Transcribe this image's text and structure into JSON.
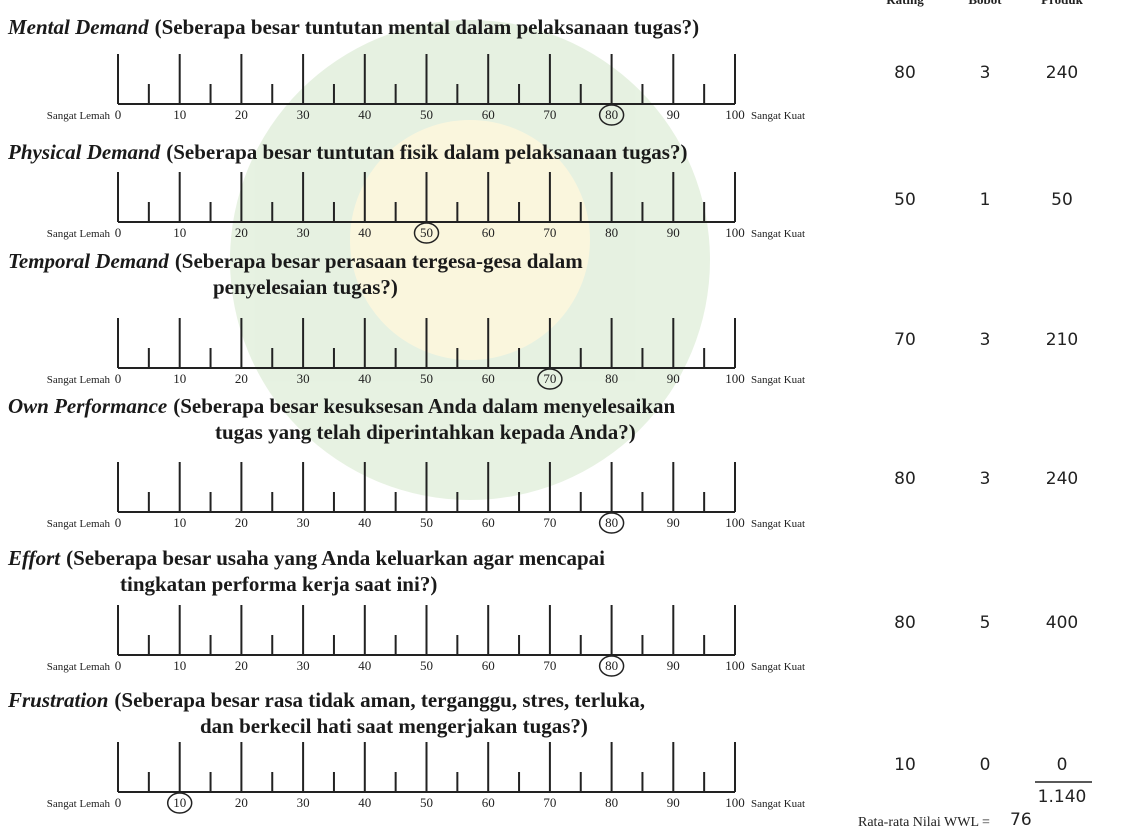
{
  "header": {
    "columns": [
      "Rating",
      "Bobot",
      "Produk"
    ]
  },
  "scale": {
    "left_label": "Sangat Lemah",
    "right_label": "Sangat Kuat",
    "ticks": [
      0,
      10,
      20,
      30,
      40,
      50,
      60,
      70,
      80,
      90,
      100
    ]
  },
  "items": [
    {
      "name": "Mental Demand",
      "question": [
        "(Seberapa besar tuntutan mental dalam pelaksanaan tugas?)"
      ],
      "circled": 80,
      "rating": "80",
      "weight": "3",
      "product": "240"
    },
    {
      "name": "Physical Demand",
      "question": [
        "(Seberapa besar tuntutan fisik dalam pelaksanaan tugas?)"
      ],
      "circled": 50,
      "rating": "50",
      "weight": "1",
      "product": "50"
    },
    {
      "name": "Temporal Demand",
      "question": [
        "(Seberapa besar perasaan tergesa-gesa dalam",
        "penyelesaian tugas?)"
      ],
      "circled": 70,
      "rating": "70",
      "weight": "3",
      "product": "210"
    },
    {
      "name": "Own Performance",
      "question": [
        "(Seberapa besar kesuksesan Anda dalam menyelesaikan",
        "tugas yang telah diperintahkan kepada Anda?)"
      ],
      "circled": 80,
      "rating": "80",
      "weight": "3",
      "product": "240"
    },
    {
      "name": "Effort",
      "question": [
        "(Seberapa besar usaha yang Anda keluarkan agar mencapai",
        "tingkatan performa kerja saat ini?)"
      ],
      "circled": 80,
      "rating": "80",
      "weight": "5",
      "product": "400"
    },
    {
      "name": "Frustration",
      "question": [
        "(Seberapa besar rasa tidak aman, terganggu, stres, terluka,",
        "dan berkecil hati saat mengerjakan tugas?)"
      ],
      "circled": 10,
      "rating": "10",
      "weight": "0",
      "product": "0"
    }
  ],
  "total": "1.140",
  "footer": {
    "label": "Rata-rata Nilai WWL =",
    "value": "76"
  }
}
